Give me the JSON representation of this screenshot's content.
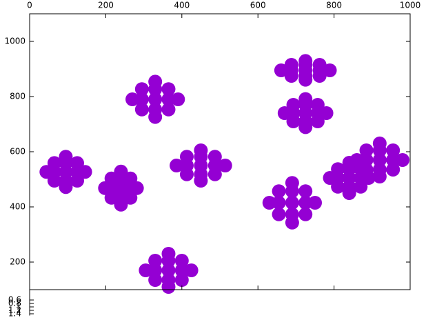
{
  "chart_data": [
    {
      "type": "scatter",
      "xlim": [
        0,
        1000
      ],
      "xticks": [
        0,
        200,
        400,
        600,
        800,
        1000
      ],
      "ylim": [
        100,
        1100
      ],
      "yticks": [
        200,
        400,
        600,
        800,
        1000
      ],
      "series": [
        {
          "color": "#9400d3",
          "x": [
            95,
            125,
            65,
            95,
            95,
            125,
            65,
            125,
            65,
            146,
            44,
            95,
            95,
            240,
            265,
            215,
            240,
            240,
            265,
            215,
            265,
            215,
            282,
            198,
            240,
            240,
            330,
            365,
            295,
            330,
            330,
            365,
            295,
            365,
            295,
            390,
            270,
            330,
            330,
            450,
            487,
            413,
            450,
            450,
            487,
            413,
            487,
            413,
            514,
            386,
            450,
            450,
            365,
            400,
            330,
            365,
            365,
            400,
            330,
            400,
            330,
            425,
            305,
            365,
            365,
            725,
            762,
            688,
            725,
            725,
            762,
            688,
            762,
            688,
            789,
            661,
            725,
            725,
            725,
            757,
            693,
            725,
            725,
            757,
            693,
            757,
            693,
            780,
            670,
            725,
            725,
            690,
            725,
            655,
            690,
            690,
            725,
            655,
            725,
            655,
            750,
            630,
            690,
            690,
            840,
            870,
            810,
            840,
            840,
            870,
            810,
            870,
            810,
            891,
            789,
            840,
            840,
            920,
            955,
            885,
            920,
            920,
            955,
            885,
            955,
            885,
            980,
            860,
            920,
            920
          ],
          "y": [
            527,
            527,
            527,
            559,
            495,
            559,
            559,
            495,
            495,
            527,
            527,
            582,
            472,
            468,
            468,
            468,
            503,
            433,
            503,
            503,
            433,
            433,
            468,
            468,
            528,
            408,
            790,
            790,
            790,
            827,
            753,
            827,
            827,
            753,
            753,
            790,
            790,
            854,
            726,
            550,
            550,
            550,
            582,
            518,
            582,
            582,
            518,
            518,
            550,
            550,
            605,
            495,
            170,
            170,
            170,
            205,
            135,
            205,
            205,
            135,
            135,
            170,
            170,
            230,
            110,
            895,
            895,
            895,
            915,
            875,
            915,
            915,
            875,
            875,
            895,
            895,
            929,
            861,
            740,
            740,
            740,
            770,
            710,
            770,
            770,
            710,
            710,
            740,
            740,
            791,
            689,
            415,
            415,
            415,
            457,
            373,
            457,
            457,
            373,
            373,
            415,
            415,
            487,
            343,
            505,
            505,
            505,
            537,
            473,
            537,
            537,
            473,
            473,
            505,
            505,
            560,
            450,
            570,
            570,
            570,
            605,
            535,
            605,
            605,
            535,
            535,
            570,
            570,
            630,
            510
          ]
        }
      ]
    },
    {
      "type": "scatter",
      "ylim": [
        0,
        1.5
      ],
      "yticks": [
        0.6,
        0.8,
        1,
        1.2,
        1.4
      ]
    }
  ]
}
